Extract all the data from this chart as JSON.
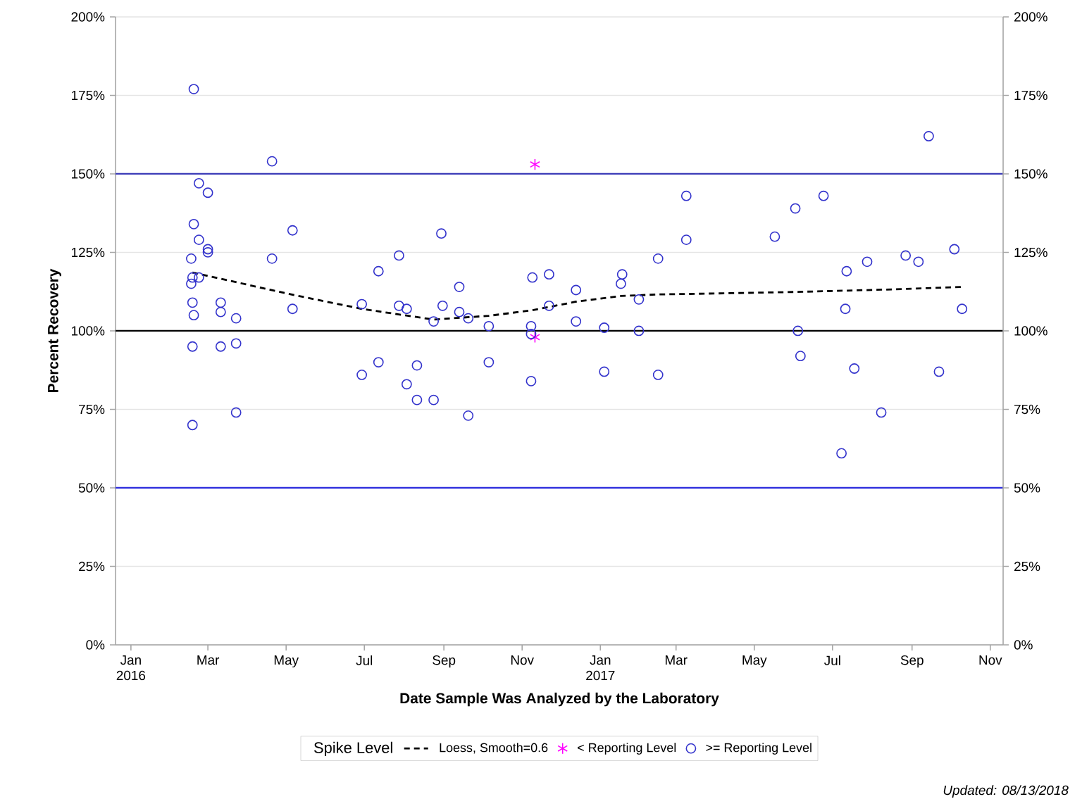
{
  "chart_data": {
    "type": "scatter",
    "xlabel": "Date Sample Was Analyzed by the Laboratory",
    "ylabel": "Percent Recovery",
    "legend_title": "Spike Level",
    "legend": "bottom",
    "grid": "y",
    "annotations": [
      "Updated: 08/13/2018"
    ],
    "xlim": [
      "2015-12-20",
      "2017-11-11"
    ],
    "xticks": [
      {
        "value": "2016-01-01",
        "label": "Jan 2016"
      },
      {
        "value": "2016-03-01",
        "label": "Mar"
      },
      {
        "value": "2016-05-01",
        "label": "May"
      },
      {
        "value": "2016-07-01",
        "label": "Jul"
      },
      {
        "value": "2016-09-01",
        "label": "Sep"
      },
      {
        "value": "2016-11-01",
        "label": "Nov"
      },
      {
        "value": "2017-01-01",
        "label": "Jan 2017"
      },
      {
        "value": "2017-03-01",
        "label": "Mar"
      },
      {
        "value": "2017-05-01",
        "label": "May"
      },
      {
        "value": "2017-07-01",
        "label": "Jul"
      },
      {
        "value": "2017-09-01",
        "label": "Sep"
      },
      {
        "value": "2017-11-01",
        "label": "Nov"
      }
    ],
    "ylim": [
      0,
      200
    ],
    "yticks": [
      {
        "value": 0,
        "label": "0%"
      },
      {
        "value": 25,
        "label": "25%"
      },
      {
        "value": 50,
        "label": "50%"
      },
      {
        "value": 75,
        "label": "75%"
      },
      {
        "value": 100,
        "label": "100%"
      },
      {
        "value": 125,
        "label": "125%"
      },
      {
        "value": 150,
        "label": "150%"
      },
      {
        "value": 175,
        "label": "175%"
      },
      {
        "value": 200,
        "label": "200%"
      }
    ],
    "y2lim": [
      0,
      200
    ],
    "y2ticks": [
      {
        "value": 0,
        "label": "0%"
      },
      {
        "value": 25,
        "label": "25%"
      },
      {
        "value": 50,
        "label": "50%"
      },
      {
        "value": 75,
        "label": "75%"
      },
      {
        "value": 100,
        "label": "100%"
      },
      {
        "value": 125,
        "label": "125%"
      },
      {
        "value": 150,
        "label": "150%"
      },
      {
        "value": 175,
        "label": "175%"
      },
      {
        "value": 200,
        "label": "200%"
      }
    ],
    "ref_lines": [
      {
        "axis": "y",
        "value": 150,
        "color": "#3b3bb8"
      },
      {
        "axis": "y",
        "value": 100,
        "color": "#000000"
      },
      {
        "axis": "y",
        "value": 50,
        "color": "#2b2bdd"
      }
    ],
    "series": [
      {
        "name": "Loess, Smooth=0.6",
        "type": "line",
        "color": "#000000",
        "line_style": "dashed",
        "marker": "none",
        "x": [
          "2016-02-18",
          "2016-05-06",
          "2016-06-29",
          "2016-08-24",
          "2016-10-06",
          "2016-11-08",
          "2016-11-22",
          "2016-12-13",
          "2017-01-17",
          "2017-02-15",
          "2017-04-13",
          "2017-06-03",
          "2017-08-16",
          "2017-10-09"
        ],
        "values": [
          118.6,
          111.5,
          107,
          103.6,
          104.8,
          106.5,
          107.6,
          109.3,
          111.1,
          111.6,
          112,
          112.4,
          113.2,
          114
        ]
      },
      {
        "name": "< Reporting Level",
        "color": "#ff00ff",
        "marker": "cross",
        "x": [
          "2016-11-11",
          "2016-11-11"
        ],
        "values": [
          153,
          98
        ]
      },
      {
        "name": ">= Reporting Level",
        "color": "#3333cc",
        "marker": "circle",
        "x": [
          "2016-02-19",
          "2016-04-20",
          "2016-02-23",
          "2016-03-01",
          "2016-02-19",
          "2016-02-23",
          "2016-03-01",
          "2016-03-01",
          "2016-05-06",
          "2016-02-17",
          "2016-04-20",
          "2016-02-18",
          "2016-02-23",
          "2016-02-17",
          "2016-02-18",
          "2016-02-19",
          "2016-03-11",
          "2016-03-11",
          "2016-03-23",
          "2016-05-06",
          "2016-02-18",
          "2016-03-11",
          "2016-03-23",
          "2016-03-23",
          "2016-02-18",
          "2016-06-29",
          "2016-07-12",
          "2016-07-28",
          "2016-07-28",
          "2016-08-03",
          "2016-06-29",
          "2016-07-12",
          "2016-08-11",
          "2016-08-03",
          "2016-08-11",
          "2016-08-24",
          "2016-08-24",
          "2016-08-31",
          "2016-08-30",
          "2016-09-13",
          "2016-09-13",
          "2016-09-20",
          "2016-10-06",
          "2016-10-06",
          "2016-09-20",
          "2016-11-09",
          "2016-11-22",
          "2016-11-22",
          "2016-11-08",
          "2016-11-08",
          "2016-11-08",
          "2016-12-13",
          "2016-12-13",
          "2017-01-04",
          "2017-01-04",
          "2017-01-18",
          "2017-01-17",
          "2017-01-31",
          "2017-01-31",
          "2017-02-15",
          "2017-02-15",
          "2017-03-09",
          "2017-03-09",
          "2017-09-14",
          "2017-06-24",
          "2017-06-02",
          "2017-05-17",
          "2017-07-12",
          "2017-07-28",
          "2017-08-27",
          "2017-09-06",
          "2017-10-04",
          "2017-07-11",
          "2017-10-10",
          "2017-06-04",
          "2017-06-06",
          "2017-07-18",
          "2017-09-22",
          "2017-08-08",
          "2017-07-08"
        ],
        "values": [
          177,
          154,
          147,
          144,
          134,
          129,
          126,
          125,
          132,
          123,
          123,
          117,
          117,
          115,
          109,
          105,
          109,
          106,
          104,
          107,
          95,
          95,
          96,
          74,
          70,
          108.5,
          119,
          124,
          108,
          107,
          86,
          90,
          89,
          83,
          78,
          78,
          103,
          108,
          131,
          114,
          106,
          104,
          101.5,
          90,
          73,
          117,
          118,
          108,
          101.5,
          99,
          84,
          113,
          103,
          101,
          87,
          118,
          115,
          110,
          100,
          123,
          86,
          143,
          129,
          162,
          143,
          139,
          130,
          119,
          122,
          124,
          122,
          126,
          107,
          107,
          100,
          92,
          88,
          87,
          74,
          61
        ]
      }
    ]
  }
}
